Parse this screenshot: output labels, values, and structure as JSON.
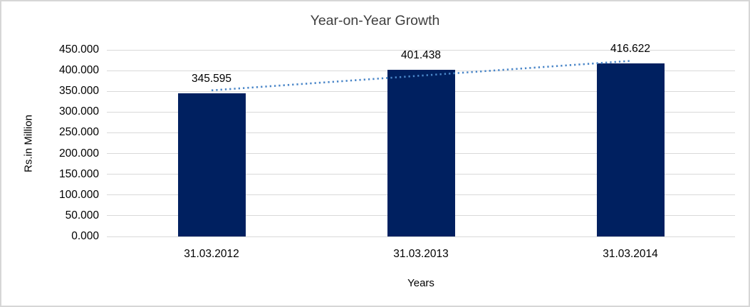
{
  "chart_data": {
    "type": "bar",
    "title": "Year-on-Year Growth",
    "xlabel": "Years",
    "ylabel": "Rs.in Million",
    "categories": [
      "31.03.2012",
      "31.03.2013",
      "31.03.2014"
    ],
    "values": [
      345.595,
      401.438,
      416.622
    ],
    "data_labels": [
      "345.595",
      "401.438",
      "416.622"
    ],
    "ylim": [
      0,
      450
    ],
    "ytick_step": 50,
    "ytick_labels": [
      "0.000",
      "50.000",
      "100.000",
      "150.000",
      "200.000",
      "250.000",
      "300.000",
      "350.000",
      "400.000",
      "450.000"
    ],
    "grid": true,
    "legend": "none",
    "bar_color": "#002060",
    "gridline_color": "#d9d9d9",
    "trendline": {
      "type": "linear",
      "style": "dotted",
      "color": "#4a86c8"
    }
  }
}
